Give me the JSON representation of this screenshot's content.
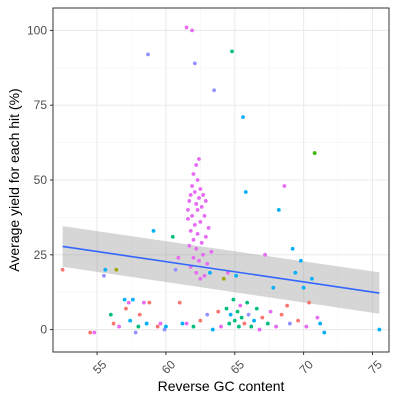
{
  "chart_data": {
    "type": "scatter",
    "title": "",
    "xlabel": "Reverse GC content",
    "ylabel": "Average yield for each hit (%)",
    "xlim": [
      51.8,
      76.2
    ],
    "ylim": [
      -7.5,
      107.5
    ],
    "x_ticks": [
      55,
      60,
      65,
      70,
      75
    ],
    "y_ticks": [
      0,
      25,
      50,
      75,
      100
    ],
    "x_tick_rotation_deg": -45,
    "grid": true,
    "legend": "none",
    "colors": {
      "panel_border": "#333333",
      "grid_major": "#ebebeb",
      "grid_minor": "#f5f5f5",
      "trend_line": "#3366ff",
      "confidence_band": "#999999",
      "points_pink": "#e76bf3",
      "points_purple": "#9590ff",
      "points_cyan": "#00b0f6",
      "points_teal": "#00bf7d",
      "points_red": "#f8766d",
      "points_olive": "#a3a500",
      "points_green": "#39b600"
    },
    "trend": {
      "method": "linear",
      "x": [
        52.5,
        75.5
      ],
      "y": [
        27.8,
        12.2
      ],
      "band_lower": [
        21.0,
        5.3
      ],
      "band_upper": [
        34.6,
        19.1
      ]
    },
    "points": [
      {
        "x": 52.5,
        "y": 20,
        "c": "#f8766d"
      },
      {
        "x": 54.5,
        "y": -1,
        "c": "#f8766d"
      },
      {
        "x": 54.8,
        "y": -1,
        "c": "#e76bf3"
      },
      {
        "x": 55.5,
        "y": 18,
        "c": "#9590ff"
      },
      {
        "x": 55.6,
        "y": 20,
        "c": "#00b0f6"
      },
      {
        "x": 56.0,
        "y": 5,
        "c": "#00bf7d"
      },
      {
        "x": 56.2,
        "y": 2,
        "c": "#f8766d"
      },
      {
        "x": 56.4,
        "y": 20,
        "c": "#a3a500"
      },
      {
        "x": 56.6,
        "y": 1,
        "c": "#e76bf3"
      },
      {
        "x": 57.0,
        "y": 10,
        "c": "#00b0f6"
      },
      {
        "x": 57.1,
        "y": 7,
        "c": "#f8766d"
      },
      {
        "x": 57.3,
        "y": 9,
        "c": "#e76bf3"
      },
      {
        "x": 57.4,
        "y": 3,
        "c": "#00b0f6"
      },
      {
        "x": 57.6,
        "y": 10,
        "c": "#00b0f6"
      },
      {
        "x": 57.8,
        "y": -1,
        "c": "#9590ff"
      },
      {
        "x": 58.0,
        "y": 1,
        "c": "#00bf7d"
      },
      {
        "x": 58.1,
        "y": 5,
        "c": "#f8766d"
      },
      {
        "x": 58.4,
        "y": 9,
        "c": "#e76bf3"
      },
      {
        "x": 58.6,
        "y": 2,
        "c": "#00b0f6"
      },
      {
        "x": 58.7,
        "y": 92,
        "c": "#9590ff"
      },
      {
        "x": 58.8,
        "y": 9,
        "c": "#f8766d"
      },
      {
        "x": 59.1,
        "y": 33,
        "c": "#00b0f6"
      },
      {
        "x": 59.4,
        "y": 1,
        "c": "#f8766d"
      },
      {
        "x": 59.6,
        "y": 2,
        "c": "#e76bf3"
      },
      {
        "x": 59.9,
        "y": 0,
        "c": "#9590ff"
      },
      {
        "x": 60.0,
        "y": 1,
        "c": "#00b0f6"
      },
      {
        "x": 60.5,
        "y": 31,
        "c": "#00bf7d"
      },
      {
        "x": 60.7,
        "y": 20,
        "c": "#9590ff"
      },
      {
        "x": 60.9,
        "y": 24,
        "c": "#e76bf3"
      },
      {
        "x": 61.0,
        "y": 9,
        "c": "#f8766d"
      },
      {
        "x": 61.2,
        "y": 2,
        "c": "#00b0f6"
      },
      {
        "x": 61.5,
        "y": 101,
        "c": "#e76bf3"
      },
      {
        "x": 61.6,
        "y": 37,
        "c": "#e76bf3"
      },
      {
        "x": 61.6,
        "y": 40,
        "c": "#e76bf3"
      },
      {
        "x": 61.7,
        "y": 43,
        "c": "#e76bf3"
      },
      {
        "x": 61.7,
        "y": 28,
        "c": "#e76bf3"
      },
      {
        "x": 61.8,
        "y": 45,
        "c": "#e76bf3"
      },
      {
        "x": 61.8,
        "y": 33,
        "c": "#e76bf3"
      },
      {
        "x": 61.8,
        "y": 21,
        "c": "#e76bf3"
      },
      {
        "x": 61.9,
        "y": 100,
        "c": "#e76bf3"
      },
      {
        "x": 61.9,
        "y": 48,
        "c": "#e76bf3"
      },
      {
        "x": 61.9,
        "y": 38,
        "c": "#e76bf3"
      },
      {
        "x": 62.0,
        "y": 52,
        "c": "#e76bf3"
      },
      {
        "x": 62.0,
        "y": 30,
        "c": "#e76bf3"
      },
      {
        "x": 62.0,
        "y": 24,
        "c": "#e76bf3"
      },
      {
        "x": 62.1,
        "y": 89,
        "c": "#9590ff"
      },
      {
        "x": 62.1,
        "y": 46,
        "c": "#e76bf3"
      },
      {
        "x": 62.1,
        "y": 35,
        "c": "#e76bf3"
      },
      {
        "x": 62.2,
        "y": 55,
        "c": "#e76bf3"
      },
      {
        "x": 62.2,
        "y": 42,
        "c": "#e76bf3"
      },
      {
        "x": 62.2,
        "y": 27,
        "c": "#e76bf3"
      },
      {
        "x": 62.2,
        "y": 19,
        "c": "#e76bf3"
      },
      {
        "x": 62.3,
        "y": 50,
        "c": "#e76bf3"
      },
      {
        "x": 62.3,
        "y": 40,
        "c": "#e76bf3"
      },
      {
        "x": 62.3,
        "y": 32,
        "c": "#e76bf3"
      },
      {
        "x": 62.4,
        "y": 57,
        "c": "#e76bf3"
      },
      {
        "x": 62.4,
        "y": 44,
        "c": "#e76bf3"
      },
      {
        "x": 62.4,
        "y": 23,
        "c": "#e76bf3"
      },
      {
        "x": 62.5,
        "y": 47,
        "c": "#e76bf3"
      },
      {
        "x": 62.5,
        "y": 36,
        "c": "#e76bf3"
      },
      {
        "x": 62.5,
        "y": 17,
        "c": "#e76bf3"
      },
      {
        "x": 62.6,
        "y": 41,
        "c": "#e76bf3"
      },
      {
        "x": 62.6,
        "y": 29,
        "c": "#e76bf3"
      },
      {
        "x": 62.7,
        "y": 45,
        "c": "#e76bf3"
      },
      {
        "x": 62.7,
        "y": 25,
        "c": "#e76bf3"
      },
      {
        "x": 62.8,
        "y": 38,
        "c": "#e76bf3"
      },
      {
        "x": 62.8,
        "y": 18,
        "c": "#e76bf3"
      },
      {
        "x": 62.9,
        "y": 43,
        "c": "#e76bf3"
      },
      {
        "x": 62.9,
        "y": 31,
        "c": "#e76bf3"
      },
      {
        "x": 63.0,
        "y": 22,
        "c": "#e76bf3"
      },
      {
        "x": 63.1,
        "y": 34,
        "c": "#e76bf3"
      },
      {
        "x": 63.2,
        "y": 19,
        "c": "#00b0f6"
      },
      {
        "x": 63.3,
        "y": 26,
        "c": "#e76bf3"
      },
      {
        "x": 63.5,
        "y": 80,
        "c": "#9590ff"
      },
      {
        "x": 61.5,
        "y": 2,
        "c": "#e76bf3"
      },
      {
        "x": 62.0,
        "y": 1,
        "c": "#00bf7d"
      },
      {
        "x": 62.5,
        "y": 3,
        "c": "#f8766d"
      },
      {
        "x": 63.0,
        "y": 5,
        "c": "#9590ff"
      },
      {
        "x": 63.4,
        "y": 0,
        "c": "#00b0f6"
      },
      {
        "x": 63.8,
        "y": 6,
        "c": "#f8766d"
      },
      {
        "x": 64.0,
        "y": 1,
        "c": "#e76bf3"
      },
      {
        "x": 64.2,
        "y": 17,
        "c": "#a3a500"
      },
      {
        "x": 64.4,
        "y": 7,
        "c": "#00bf7d"
      },
      {
        "x": 64.5,
        "y": 19,
        "c": "#e76bf3"
      },
      {
        "x": 64.6,
        "y": 2,
        "c": "#00bf7d"
      },
      {
        "x": 64.7,
        "y": 5,
        "c": "#00b0f6"
      },
      {
        "x": 64.8,
        "y": 93,
        "c": "#00bf7d"
      },
      {
        "x": 64.9,
        "y": 10,
        "c": "#00bf7d"
      },
      {
        "x": 65.0,
        "y": 3,
        "c": "#00bf7d"
      },
      {
        "x": 65.1,
        "y": 18,
        "c": "#00b0f6"
      },
      {
        "x": 65.2,
        "y": 6,
        "c": "#00bf7d"
      },
      {
        "x": 65.3,
        "y": 1,
        "c": "#00bf7d"
      },
      {
        "x": 65.4,
        "y": 8,
        "c": "#e76bf3"
      },
      {
        "x": 65.5,
        "y": 4,
        "c": "#00bf7d"
      },
      {
        "x": 65.6,
        "y": 71,
        "c": "#00b0f6"
      },
      {
        "x": 65.7,
        "y": 2,
        "c": "#f8766d"
      },
      {
        "x": 65.8,
        "y": 46,
        "c": "#00b0f6"
      },
      {
        "x": 65.9,
        "y": 9,
        "c": "#00bf7d"
      },
      {
        "x": 66.0,
        "y": 5,
        "c": "#9590ff"
      },
      {
        "x": 66.2,
        "y": 1,
        "c": "#00bf7d"
      },
      {
        "x": 66.4,
        "y": 3,
        "c": "#00b0f6"
      },
      {
        "x": 66.6,
        "y": 7,
        "c": "#00bf7d"
      },
      {
        "x": 66.8,
        "y": 0,
        "c": "#e76bf3"
      },
      {
        "x": 67.0,
        "y": 4,
        "c": "#f8766d"
      },
      {
        "x": 67.2,
        "y": 25,
        "c": "#e76bf3"
      },
      {
        "x": 67.4,
        "y": 2,
        "c": "#00bf7d"
      },
      {
        "x": 67.6,
        "y": 6,
        "c": "#e76bf3"
      },
      {
        "x": 67.8,
        "y": 14,
        "c": "#00b0f6"
      },
      {
        "x": 68.0,
        "y": 1,
        "c": "#e76bf3"
      },
      {
        "x": 68.2,
        "y": 40,
        "c": "#00b0f6"
      },
      {
        "x": 68.4,
        "y": 5,
        "c": "#f8766d"
      },
      {
        "x": 68.6,
        "y": 48,
        "c": "#e76bf3"
      },
      {
        "x": 68.8,
        "y": 8,
        "c": "#f8766d"
      },
      {
        "x": 69.0,
        "y": 2,
        "c": "#9590ff"
      },
      {
        "x": 69.2,
        "y": 27,
        "c": "#00b0f6"
      },
      {
        "x": 69.4,
        "y": 19,
        "c": "#00b0f6"
      },
      {
        "x": 69.6,
        "y": 3,
        "c": "#f8766d"
      },
      {
        "x": 69.8,
        "y": 23,
        "c": "#00b0f6"
      },
      {
        "x": 70.0,
        "y": 14,
        "c": "#00b0f6"
      },
      {
        "x": 70.2,
        "y": 1,
        "c": "#e76bf3"
      },
      {
        "x": 70.4,
        "y": 9,
        "c": "#f8766d"
      },
      {
        "x": 70.6,
        "y": 17,
        "c": "#00b0f6"
      },
      {
        "x": 70.8,
        "y": 59,
        "c": "#39b600"
      },
      {
        "x": 71.0,
        "y": 4,
        "c": "#e76bf3"
      },
      {
        "x": 71.2,
        "y": 2,
        "c": "#00b0f6"
      },
      {
        "x": 71.5,
        "y": -1,
        "c": "#00b0f6"
      },
      {
        "x": 75.5,
        "y": 0,
        "c": "#00b0f6"
      }
    ]
  }
}
